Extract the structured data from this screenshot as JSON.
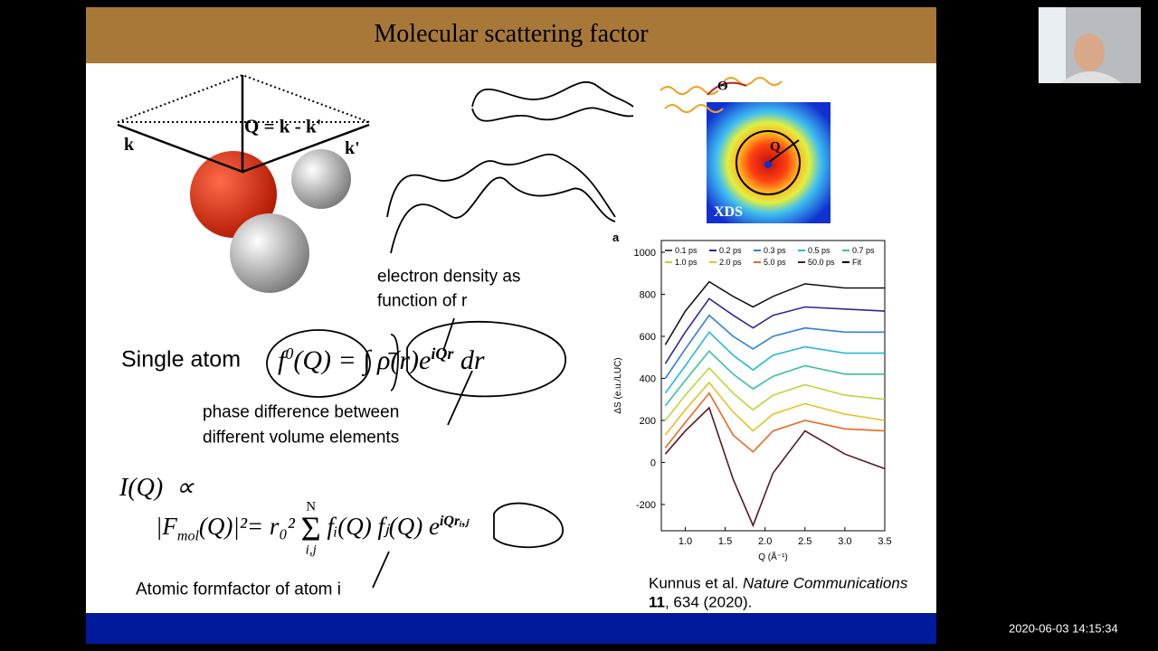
{
  "slide": {
    "title": "Molecular scattering factor",
    "diagram": {
      "q": "Q = k - k'",
      "k": "k",
      "k_prime": "k'"
    },
    "density_note": [
      "electron density as",
      "function of r"
    ],
    "single_atom": {
      "label": "Single atom",
      "formula": [
        "f",
        "0",
        "(Q) = ∫ ρ̄(r)e",
        "iQr",
        "dr"
      ]
    },
    "phase_note": [
      "phase difference between",
      "different volume elements"
    ],
    "intensity": {
      "lhs": "I(Q)  ∝",
      "formula": [
        "|F",
        "mol",
        "(Q)|²= r₀²",
        "N",
        "Σ",
        "i,j",
        "fᵢ(Q) fⱼ(Q) e",
        "iQrᵢ,ⱼ"
      ]
    },
    "formfactor_note": "Atomic formfactor of atom i",
    "xds": {
      "theta": "Θ",
      "q": "Q",
      "label": "XDS"
    },
    "citation": {
      "authors": "Kunnus et al.",
      "journal": "Nature Communications",
      "volume": "11",
      "rest": ", 634 (2020)."
    }
  },
  "chart_data": {
    "type": "line",
    "panel_label": "a",
    "x_label": "Q (Å⁻¹)",
    "y_label": "ΔS (e.u./LUC)",
    "x": [
      0.75,
      1.0,
      1.3,
      1.6,
      1.85,
      2.1,
      2.5,
      3.0,
      3.5
    ],
    "xlim": [
      0.7,
      3.5
    ],
    "ylim": [
      -325,
      1056
    ],
    "xticks": [
      {
        "value": 1,
        "label": "1.0"
      },
      1.5,
      {
        "value": 2,
        "label": "2.0"
      },
      2.5,
      {
        "value": 3,
        "label": "3.0"
      },
      3.5
    ],
    "yticks": [
      -200,
      0,
      200,
      400,
      600,
      800,
      1000
    ],
    "series": [
      {
        "name": "0.1 ps",
        "color": "#4a4a5a",
        "values": [
          560,
          720,
          860,
          790,
          740,
          790,
          850,
          830,
          830
        ]
      },
      {
        "name": "0.2 ps",
        "color": "#2a2a9a",
        "values": [
          470,
          620,
          780,
          700,
          640,
          700,
          740,
          730,
          720
        ]
      },
      {
        "name": "0.3 ps",
        "color": "#2f7fd8",
        "values": [
          400,
          540,
          700,
          600,
          540,
          600,
          640,
          620,
          620
        ]
      },
      {
        "name": "0.5 ps",
        "color": "#28b8d8",
        "values": [
          330,
          460,
          620,
          510,
          440,
          510,
          550,
          520,
          520
        ]
      },
      {
        "name": "0.7 ps",
        "color": "#3cc0a0",
        "values": [
          270,
          390,
          530,
          420,
          350,
          410,
          460,
          420,
          420
        ]
      },
      {
        "name": "1.0 ps",
        "color": "#b8d838",
        "values": [
          200,
          320,
          450,
          330,
          250,
          320,
          370,
          320,
          300
        ]
      },
      {
        "name": "2.0 ps",
        "color": "#e8c020",
        "values": [
          130,
          250,
          380,
          240,
          150,
          230,
          280,
          230,
          200
        ]
      },
      {
        "name": "5.0 ps",
        "color": "#e86a20",
        "values": [
          70,
          190,
          330,
          130,
          50,
          150,
          200,
          160,
          150
        ]
      },
      {
        "name": "50.0 ps",
        "color": "#5a1a1a",
        "values": [
          40,
          150,
          260,
          -80,
          -300,
          -50,
          150,
          40,
          -30
        ]
      },
      {
        "name": "Fit",
        "color": "#000000",
        "values": [
          560,
          720,
          860,
          790,
          740,
          790,
          850,
          830,
          830
        ]
      }
    ]
  },
  "timestamp": "2020-06-03 14:15:34"
}
